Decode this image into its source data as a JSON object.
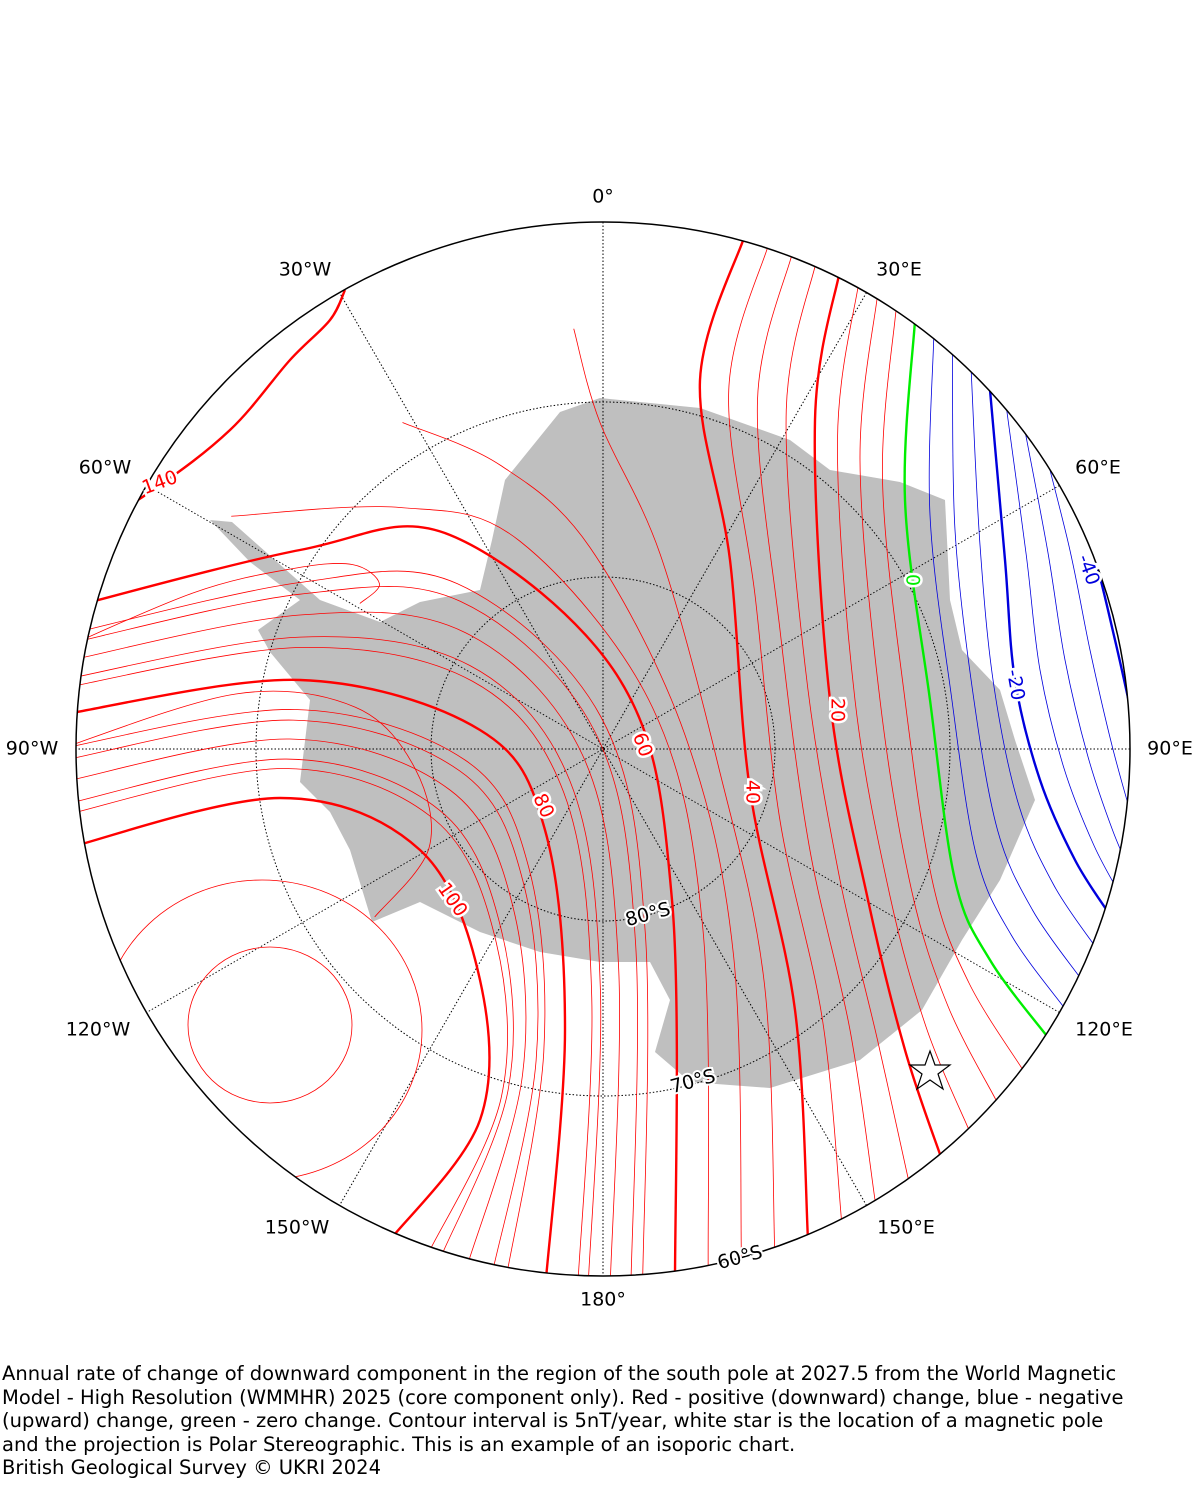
{
  "map": {
    "longitude_labels": [
      "0°",
      "30°E",
      "60°E",
      "90°E",
      "120°E",
      "150°E",
      "180°",
      "150°W",
      "120°W",
      "90°W",
      "60°W",
      "30°W"
    ],
    "latitude_labels": [
      "80°S",
      "70°S",
      "60°S"
    ],
    "contour_labels": [
      140,
      100,
      80,
      60,
      40,
      20,
      0,
      -20,
      -40
    ],
    "caption": [
      "Annual rate of change of downward component in the region of the south pole at 2027.5 from the World Magnetic",
      "Model - High Resolution (WMMHR) 2025 (core component only). Red - positive (downward) change, blue - negative",
      "(upward) change, green - zero change. Contour interval is 5nT/year, white star is the location of a magnetic pole",
      "and the projection is Polar Stereographic. This is an example of an isoporic chart."
    ],
    "credit": "British Geological Survey © UKRI 2024"
  }
}
